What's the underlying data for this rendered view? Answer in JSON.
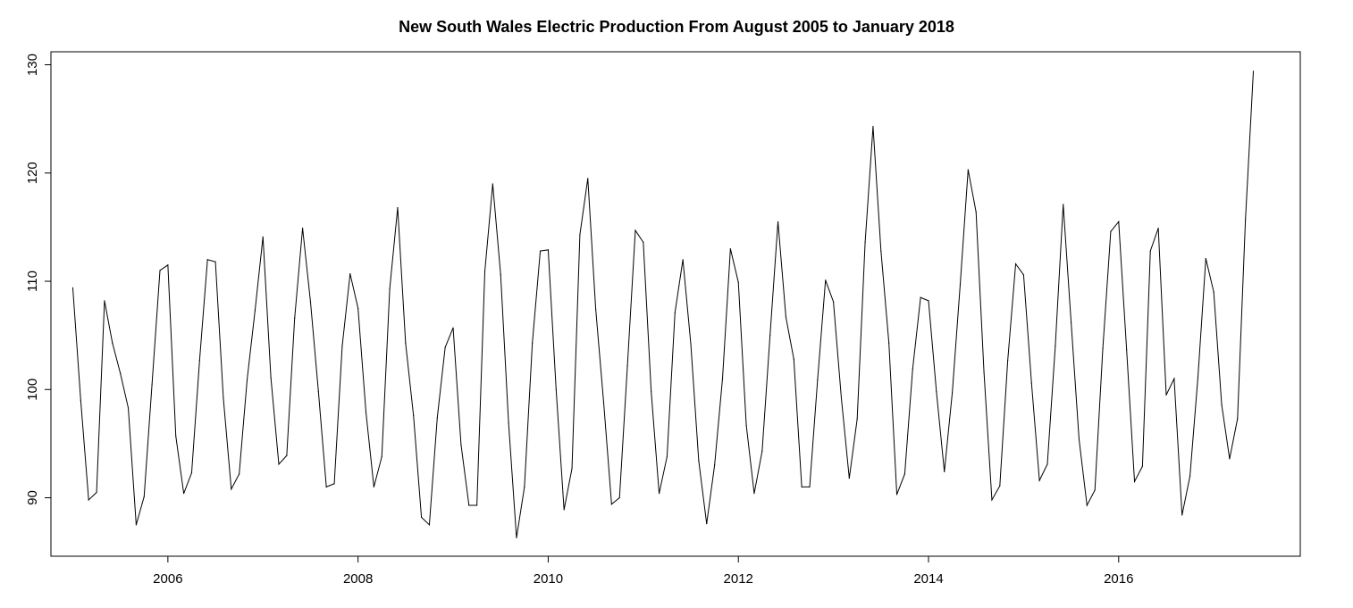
{
  "chart_data": {
    "type": "line",
    "title": "New South Wales Electric Production From August 2005 to January 2018",
    "xlabel": "",
    "ylabel": "",
    "xlim": [
      2004.77,
      2017.91
    ],
    "ylim": [
      84.6,
      131.2
    ],
    "x_ticks": [
      2006,
      2008,
      2010,
      2012,
      2014,
      2016
    ],
    "x_tick_labels": [
      "2006",
      "2008",
      "2010",
      "2012",
      "2014",
      "2016"
    ],
    "y_ticks": [
      90,
      100,
      110,
      120,
      130
    ],
    "y_tick_labels": [
      "90",
      "100",
      "110",
      "120",
      "130"
    ],
    "grid": false,
    "legend": "none",
    "line_color": "#000000",
    "series": [
      {
        "start": 2005.0,
        "step": 0.0833333,
        "values": [
          109.4,
          99.0,
          89.8,
          90.5,
          108.2,
          104.3,
          101.5,
          98.3,
          87.5,
          90.1,
          100.5,
          111.0,
          111.5,
          95.7,
          90.4,
          92.3,
          102.7,
          112.0,
          111.8,
          99.2,
          90.8,
          92.2,
          100.9,
          107.3,
          114.1,
          101.1,
          93.1,
          93.9,
          106.6,
          114.9,
          108.1,
          99.8,
          91.0,
          91.3,
          104.0,
          110.7,
          107.5,
          97.9,
          91.0,
          93.8,
          109.3,
          116.8,
          104.3,
          97.6,
          88.2,
          87.5,
          97.4,
          103.9,
          105.7,
          94.9,
          89.3,
          89.3,
          110.9,
          119.0,
          110.6,
          96.9,
          86.3,
          91.0,
          104.3,
          112.8,
          112.9,
          100.0,
          88.9,
          92.7,
          114.3,
          119.5,
          107.4,
          98.8,
          89.4,
          90.0,
          102.2,
          114.7,
          113.6,
          99.8,
          90.4,
          93.8,
          107.1,
          112.0,
          104.2,
          93.4,
          87.6,
          93.0,
          101.0,
          113.0,
          109.9,
          96.7,
          90.4,
          94.3,
          105.0,
          115.5,
          106.7,
          102.8,
          91.0,
          91.0,
          100.9,
          110.1,
          108.1,
          99.2,
          91.8,
          97.3,
          113.6,
          124.3,
          112.8,
          104.3,
          90.3,
          92.2,
          101.9,
          108.5,
          108.2,
          99.8,
          92.4,
          99.7,
          109.7,
          120.3,
          116.4,
          101.6,
          89.8,
          91.1,
          102.7,
          111.6,
          110.6,
          100.6,
          91.6,
          93.1,
          104.0,
          117.1,
          106.2,
          95.4,
          89.3,
          90.7,
          103.8,
          114.6,
          115.5,
          103.7,
          91.5,
          92.9,
          112.8,
          114.9,
          99.5,
          101.0,
          88.4,
          92.0,
          101.1,
          112.1,
          109.0,
          98.6,
          93.6,
          97.3,
          115.7,
          129.4
        ]
      }
    ]
  }
}
